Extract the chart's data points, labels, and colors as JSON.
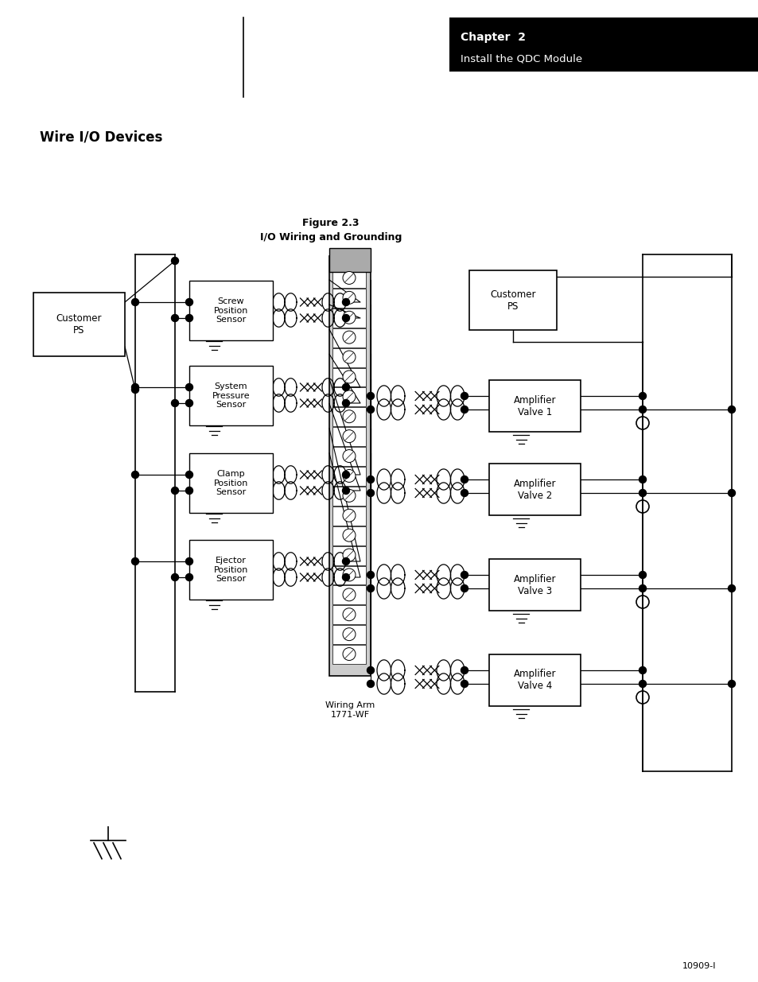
{
  "page_bg": "#ffffff",
  "header_bg": "#000000",
  "header_text_color": "#ffffff",
  "header_line1": "Chapter  2",
  "header_line2": "Install the QDC Module",
  "section_title": "Wire I/O Devices",
  "fig_caption1": "Figure 2.3",
  "fig_caption2": "I/O Wiring and Grounding",
  "footer_text": "10909-I",
  "wiring_arm_label": "Wiring Arm\n1771-WF"
}
